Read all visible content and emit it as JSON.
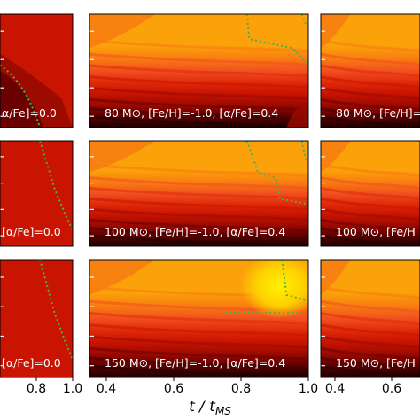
{
  "chart_data": {
    "type": "heatmap",
    "title": "",
    "xlabel_main": "t / t",
    "xlabel_sub": "MS",
    "colormap": [
      "#1a0000",
      "#3d0000",
      "#6b0000",
      "#9c0a00",
      "#c81400",
      "#e02a0a",
      "#f05020",
      "#f87a10",
      "#fba20a",
      "#fdd000",
      "#fff200"
    ],
    "contour_line_color": "#4caf50",
    "columns": [
      {
        "xlim": [
          0.6,
          1.0
        ],
        "xtick_values": [
          0.8,
          1.0
        ],
        "xtick_labels": [
          "0.8",
          "1.0"
        ]
      },
      {
        "xlim": [
          0.35,
          1.0
        ],
        "xtick_values": [
          0.4,
          0.6,
          0.8,
          1.0
        ],
        "xtick_labels": [
          "0.4",
          "0.6",
          "0.8",
          "1.0"
        ]
      },
      {
        "xlim": [
          0.35,
          0.7
        ],
        "xtick_values": [
          0.4,
          0.6
        ],
        "xtick_labels": [
          "0.4",
          "0.6"
        ]
      }
    ],
    "panels": [
      {
        "row": 0,
        "col": 0,
        "label": "α/Fe]=0.0",
        "style": "red"
      },
      {
        "row": 0,
        "col": 1,
        "label": "80 M⊙, [Fe/H]=-1.0, [α/Fe]=0.4",
        "style": "gradient"
      },
      {
        "row": 0,
        "col": 2,
        "label": "80 M⊙, [Fe/H]=",
        "style": "gradient"
      },
      {
        "row": 1,
        "col": 0,
        "label": "[α/Fe]=0.0",
        "style": "red"
      },
      {
        "row": 1,
        "col": 1,
        "label": "100 M⊙, [Fe/H]=-1.0, [α/Fe]=0.4",
        "style": "gradient"
      },
      {
        "row": 1,
        "col": 2,
        "label": "100 M⊙, [Fe/H",
        "style": "gradient"
      },
      {
        "row": 2,
        "col": 0,
        "label": "[α/Fe]=0.0",
        "style": "red"
      },
      {
        "row": 2,
        "col": 1,
        "label": "150 M⊙, [Fe/H]=-1.0, [α/Fe]=0.4",
        "style": "gradient"
      },
      {
        "row": 2,
        "col": 2,
        "label": "150 M⊙, [Fe/H",
        "style": "gradient"
      }
    ]
  }
}
